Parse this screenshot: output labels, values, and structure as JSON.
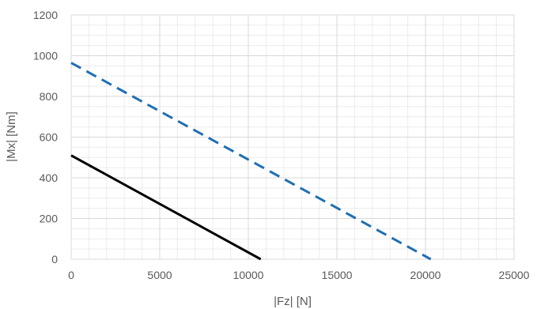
{
  "chart_data": {
    "type": "line",
    "xlabel": "|Fz| [N]",
    "ylabel": "|Mx| [Nm]",
    "xlim": [
      0,
      25000
    ],
    "ylim": [
      0,
      1200
    ],
    "x_ticks": [
      "0",
      "5000",
      "10000",
      "15000",
      "20000",
      "25000"
    ],
    "y_ticks": [
      "0",
      "200",
      "400",
      "600",
      "800",
      "1000",
      "1200"
    ],
    "x_tick_values": [
      0,
      5000,
      10000,
      15000,
      20000,
      25000
    ],
    "y_tick_values": [
      0,
      200,
      400,
      600,
      800,
      1000,
      1200
    ],
    "minor_grid_step": {
      "x": 1000,
      "y": 50
    },
    "grid": true,
    "series": [
      {
        "color": "#000000",
        "style": "solid",
        "x": [
          0,
          10700
        ],
        "y": [
          510,
          0
        ]
      },
      {
        "color": "#1f6fb2",
        "style": "dashed",
        "x": [
          0,
          20300
        ],
        "y": [
          965,
          0
        ]
      }
    ]
  }
}
